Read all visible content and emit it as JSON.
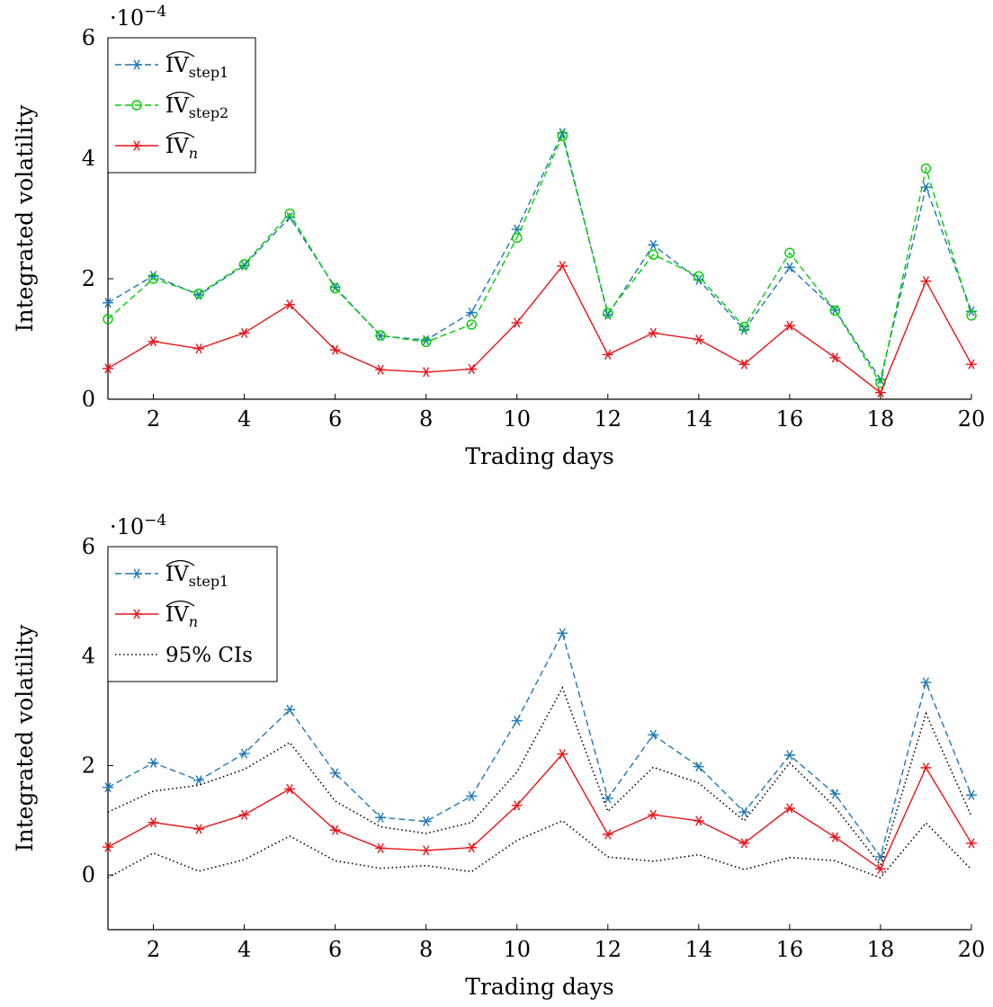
{
  "chart_data": [
    {
      "type": "line",
      "xlabel": "Trading days",
      "ylabel": "Integrated volatility",
      "scale_note": "·10−4",
      "xlim": [
        1,
        20
      ],
      "ylim": [
        0,
        6
      ],
      "x_ticks": [
        2,
        4,
        6,
        8,
        10,
        12,
        14,
        16,
        18,
        20
      ],
      "y_ticks": [
        0,
        2,
        4,
        6
      ],
      "legend_position": "top-left",
      "x": [
        1,
        2,
        3,
        4,
        5,
        6,
        7,
        8,
        9,
        10,
        11,
        12,
        13,
        14,
        15,
        16,
        17,
        18,
        19,
        20
      ],
      "series": [
        {
          "name": "IV step1",
          "legend_main": "IV",
          "legend_sub": "step1",
          "hat": true,
          "color": "#1f77b4",
          "dash": "dashed",
          "marker": "asterisk",
          "values": [
            1.6,
            2.05,
            1.73,
            2.22,
            3.02,
            1.86,
            1.05,
            0.98,
            1.44,
            2.82,
            4.42,
            1.4,
            2.56,
            1.98,
            1.15,
            2.19,
            1.48,
            0.33,
            3.52,
            1.46
          ]
        },
        {
          "name": "IV step2",
          "legend_main": "IV",
          "legend_sub": "step2",
          "hat": true,
          "color": "#00cc00",
          "dash": "dashed",
          "marker": "circle",
          "values": [
            1.33,
            2.0,
            1.75,
            2.24,
            3.08,
            1.84,
            1.06,
            0.95,
            1.24,
            2.68,
            4.37,
            1.43,
            2.4,
            2.04,
            1.2,
            2.43,
            1.47,
            0.27,
            3.83,
            1.39
          ]
        },
        {
          "name": "IV n",
          "legend_main": "IV",
          "legend_sub": "n",
          "sub_italic": true,
          "hat": true,
          "color": "#e8141a",
          "dash": "solid",
          "marker": "asterisk",
          "values": [
            0.51,
            0.96,
            0.84,
            1.1,
            1.57,
            0.82,
            0.49,
            0.45,
            0.5,
            1.27,
            2.21,
            0.74,
            1.1,
            0.99,
            0.58,
            1.22,
            0.69,
            0.11,
            1.96,
            0.58
          ]
        }
      ]
    },
    {
      "type": "line",
      "xlabel": "Trading days",
      "ylabel": "Integrated volatility",
      "scale_note": "·10−4",
      "xlim": [
        1,
        20
      ],
      "ylim": [
        -1,
        6
      ],
      "x_ticks": [
        2,
        4,
        6,
        8,
        10,
        12,
        14,
        16,
        18,
        20
      ],
      "y_ticks": [
        0,
        2,
        4,
        6
      ],
      "legend_position": "top-left",
      "x": [
        1,
        2,
        3,
        4,
        5,
        6,
        7,
        8,
        9,
        10,
        11,
        12,
        13,
        14,
        15,
        16,
        17,
        18,
        19,
        20
      ],
      "series": [
        {
          "name": "IV step1",
          "legend_main": "IV",
          "legend_sub": "step1",
          "hat": true,
          "color": "#1f77b4",
          "dash": "dashed",
          "marker": "asterisk",
          "values": [
            1.6,
            2.05,
            1.73,
            2.22,
            3.02,
            1.86,
            1.05,
            0.98,
            1.44,
            2.82,
            4.42,
            1.4,
            2.56,
            1.98,
            1.15,
            2.19,
            1.48,
            0.33,
            3.52,
            1.46
          ]
        },
        {
          "name": "IV n",
          "legend_main": "IV",
          "legend_sub": "n",
          "sub_italic": true,
          "hat": true,
          "color": "#e8141a",
          "dash": "solid",
          "marker": "asterisk",
          "values": [
            0.51,
            0.96,
            0.84,
            1.1,
            1.57,
            0.82,
            0.49,
            0.45,
            0.5,
            1.27,
            2.21,
            0.74,
            1.1,
            0.99,
            0.58,
            1.22,
            0.69,
            0.11,
            1.96,
            0.58
          ]
        },
        {
          "name": "95% CIs",
          "legend_main": "95% CIs",
          "hat": false,
          "color": "#000000",
          "dash": "dotted",
          "marker": "none",
          "values": [
            1.15,
            1.53,
            1.64,
            1.93,
            2.42,
            1.35,
            0.88,
            0.76,
            0.96,
            1.88,
            3.42,
            1.16,
            1.97,
            1.68,
            0.99,
            2.05,
            1.24,
            0.18,
            2.95,
            1.07
          ]
        },
        {
          "name": "95% CIs lower",
          "legend_hidden": true,
          "hat": false,
          "color": "#000000",
          "dash": "dotted",
          "marker": "none",
          "values": [
            -0.05,
            0.4,
            0.07,
            0.28,
            0.71,
            0.26,
            0.12,
            0.17,
            0.06,
            0.63,
            0.99,
            0.33,
            0.25,
            0.37,
            0.1,
            0.32,
            0.26,
            -0.05,
            0.95,
            0.1
          ]
        }
      ]
    }
  ]
}
